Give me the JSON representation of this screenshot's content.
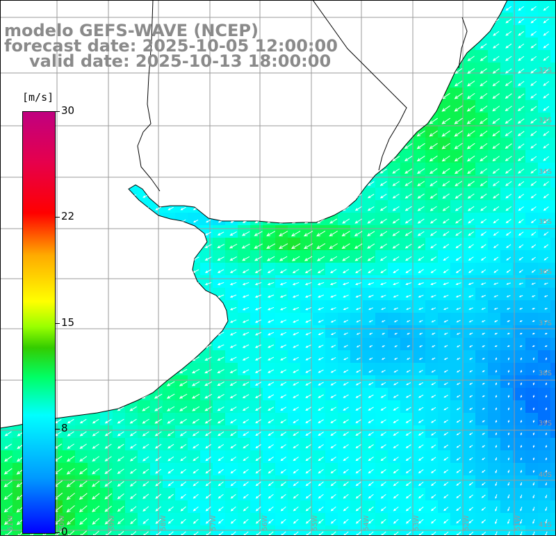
{
  "header": {
    "line1": "modelo GEFS-WAVE (NCEP)",
    "line2": "forecast date: 2025-10-05 12:00:00",
    "line3": "valid date: 2025-10-13 18:00:00"
  },
  "colorbar": {
    "unit": "[m/s]",
    "ticks": [
      "30",
      "22",
      "15",
      "8",
      "0"
    ],
    "tick_values": [
      30,
      22,
      15,
      8,
      0
    ],
    "min": 0,
    "max": 30,
    "colors": [
      "#0000ff",
      "#0099ff",
      "#00ffff",
      "#00ff66",
      "#33cc00",
      "#99ff00",
      "#ffff00",
      "#ffaa00",
      "#ff4400",
      "#ff0000",
      "#e6004c",
      "#c00080"
    ]
  },
  "lat_labels": [
    "32S",
    "33S",
    "34S",
    "35S",
    "36S",
    "37S",
    "38S",
    "39S",
    "40S",
    "41S"
  ],
  "lon_labels": [
    "61W",
    "60W",
    "59W",
    "58W",
    "57W",
    "56W",
    "55W",
    "54W",
    "53W",
    "52W",
    "51W"
  ],
  "colors": {
    "land": "#ffffff",
    "coast": "#000000",
    "grid": "#9a9a9a",
    "arrow": "#ffffff",
    "header_text": "#8a8a8a"
  }
}
